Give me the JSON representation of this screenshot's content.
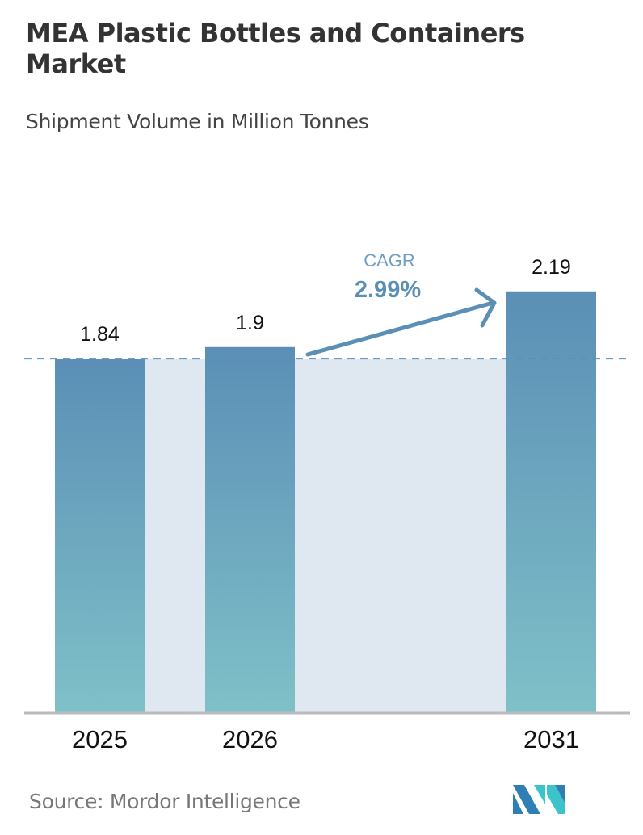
{
  "chart_data": {
    "type": "bar",
    "title": "MEA Plastic Bottles and Containers Market",
    "subtitle": "Shipment Volume in Million Tonnes",
    "categories": [
      "2025",
      "2026",
      "2031"
    ],
    "values": [
      1.84,
      1.9,
      2.19
    ],
    "value_labels": [
      "1.84",
      "1.9",
      "2.19"
    ],
    "ylim": [
      0,
      2.3
    ],
    "grid": false,
    "annotation": {
      "label": "CAGR",
      "value": "2.99%"
    },
    "colors": {
      "bar_top": "#5b8fb6",
      "bar_bottom": "#7fc0c8",
      "band": "#dfe8f0",
      "accent": "#5b8fb6"
    }
  },
  "source": "Source:  Mordor Intelligence",
  "logo": "Mordor Intelligence"
}
